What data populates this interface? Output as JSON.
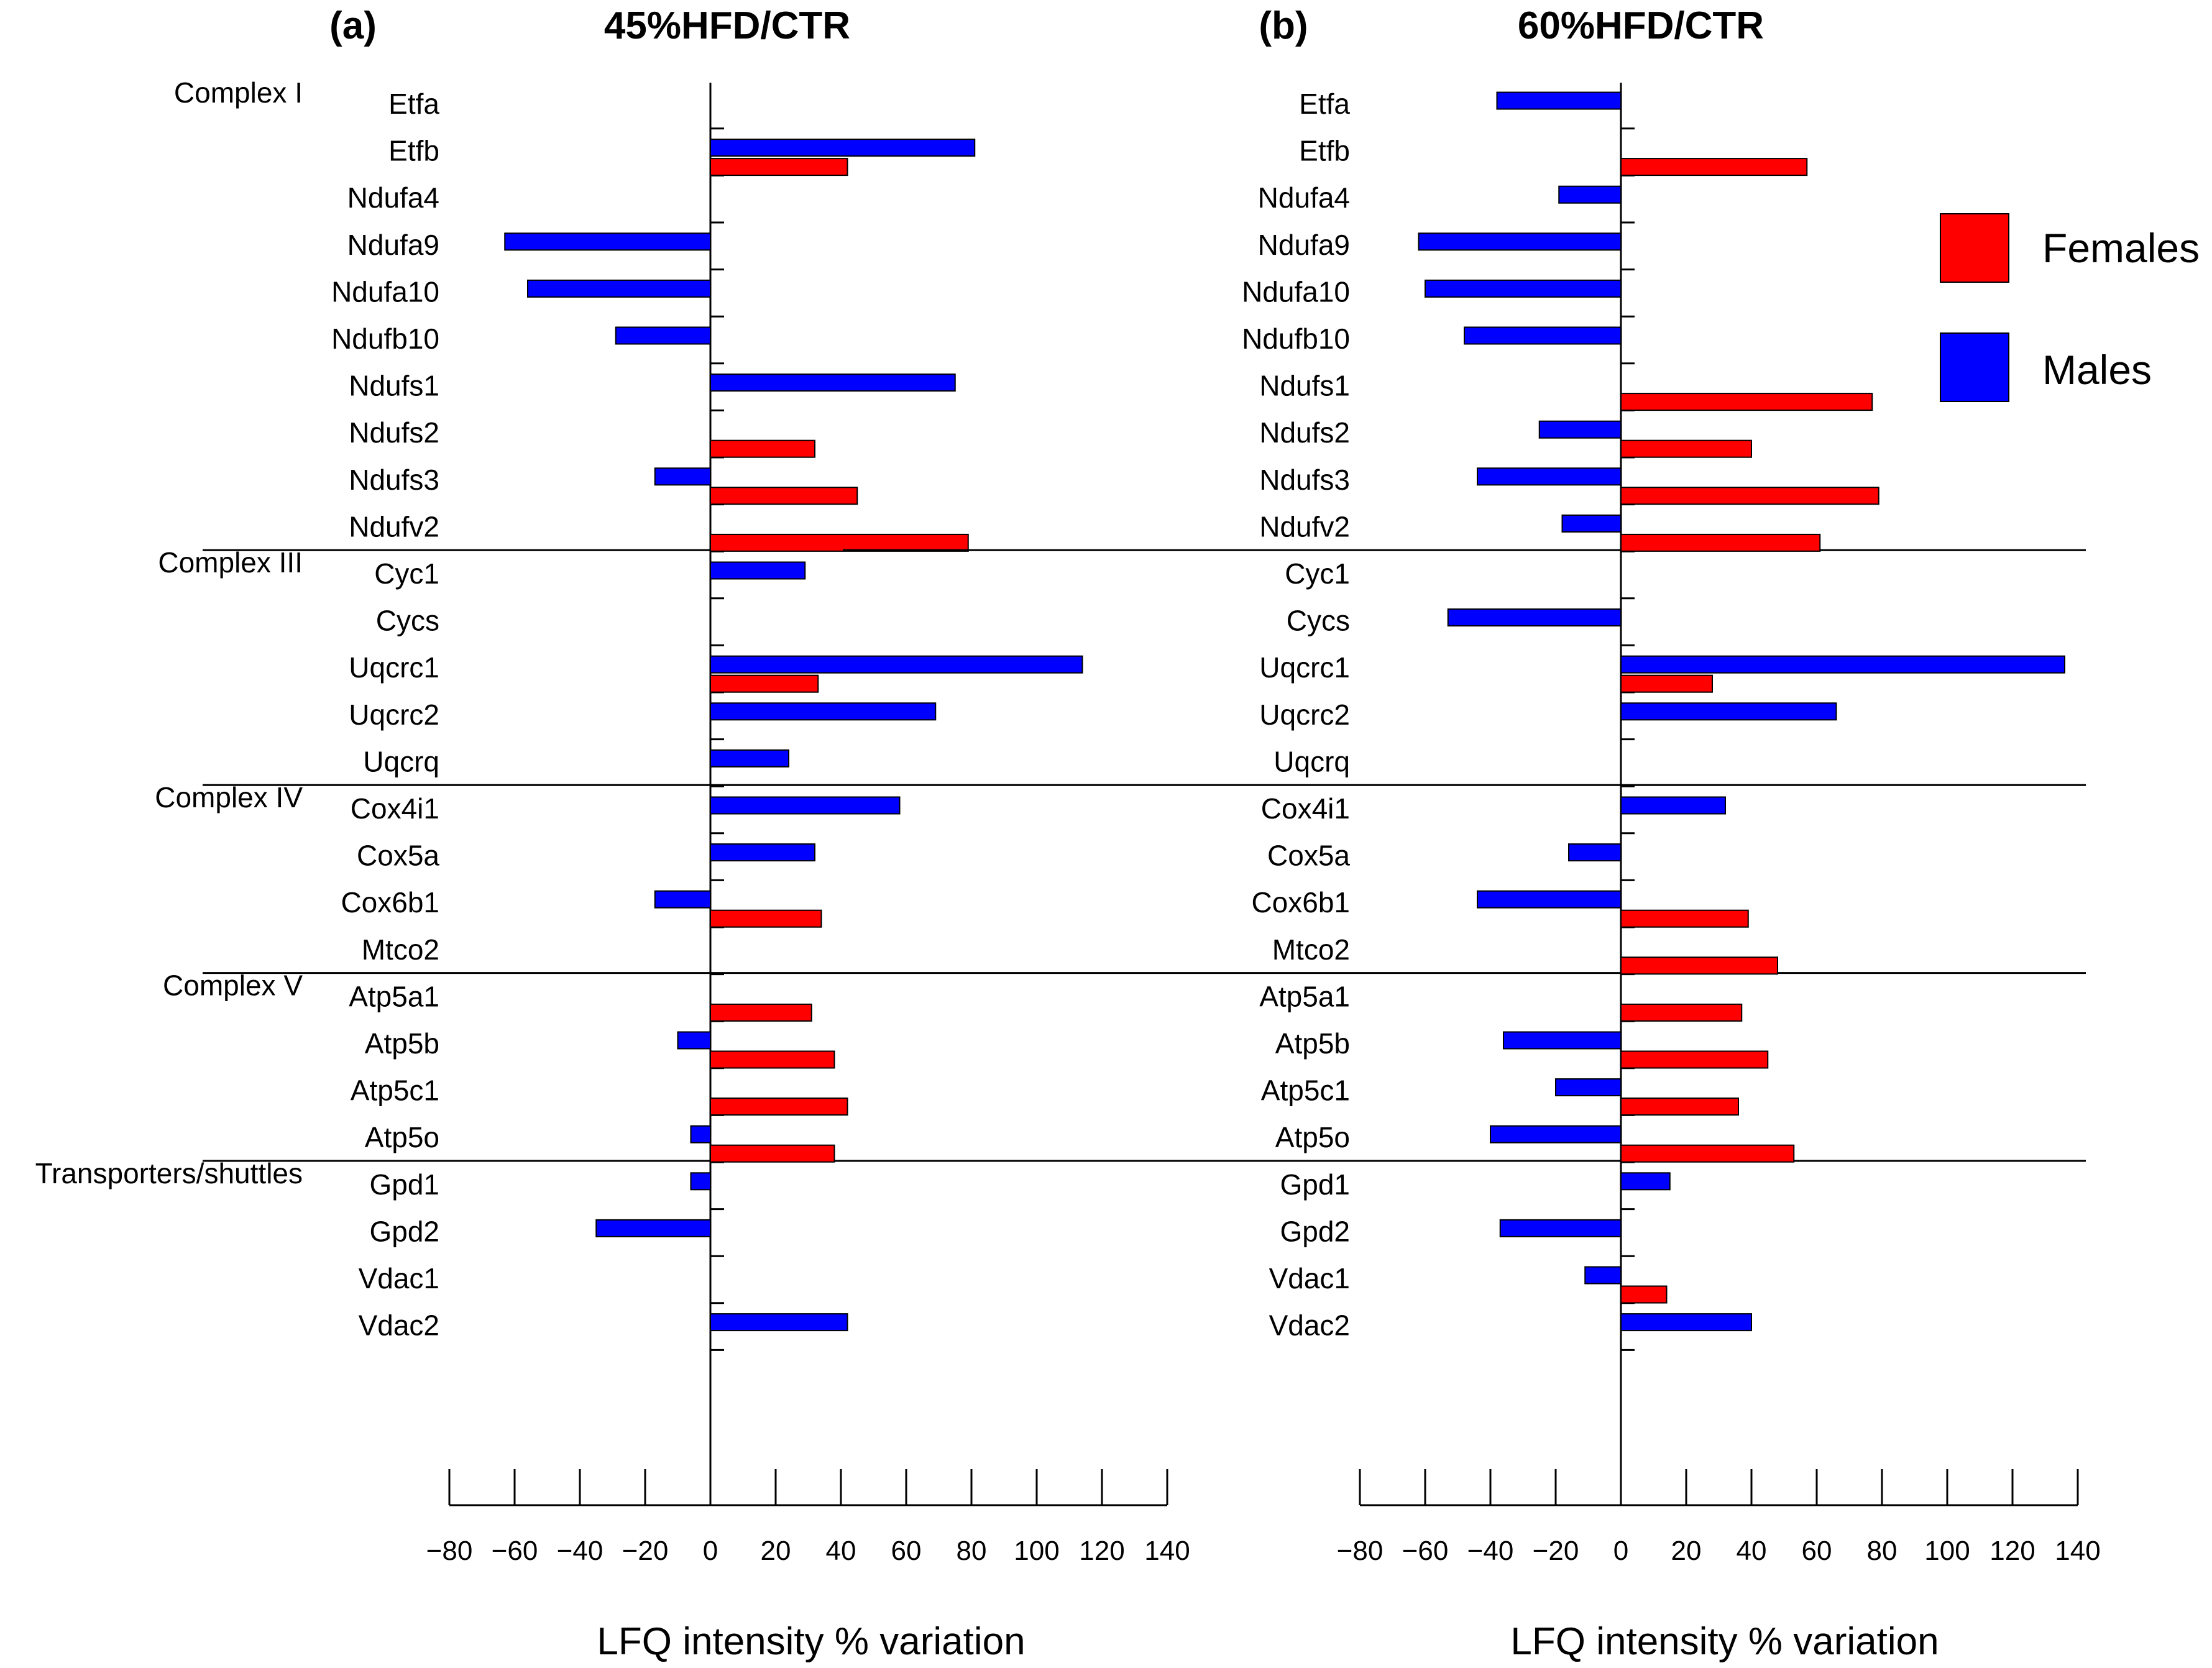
{
  "colors": {
    "females": "#ff0000",
    "males": "#0000ff",
    "axis": "#000000"
  },
  "legend": {
    "females": "Females",
    "males": "Males"
  },
  "chart_data": [
    {
      "type": "bar",
      "orientation": "horizontal",
      "panel_label": "(a)",
      "title": "45%HFD/CTR",
      "xlabel": "LFQ intensity % variation",
      "xlim": [
        -80,
        140
      ],
      "xticks": [
        -80,
        -60,
        -40,
        -20,
        0,
        20,
        40,
        60,
        80,
        100,
        120,
        140
      ],
      "xtick_labels": [
        "−80",
        "−60",
        "−40",
        "−20",
        "0",
        "20",
        "40",
        "60",
        "80",
        "100",
        "120",
        "140"
      ],
      "groups": [
        {
          "name": "Complex I",
          "genes": [
            "Etfa",
            "Etfb",
            "Ndufa4",
            "Ndufa9",
            "Ndufa10",
            "Ndufb10",
            "Ndufs1",
            "Ndufs2",
            "Ndufs3",
            "Ndufv2"
          ]
        },
        {
          "name": "Complex III",
          "genes": [
            "Cyc1",
            "Cycs",
            "Uqcrc1",
            "Uqcrc2",
            "Uqcrq"
          ]
        },
        {
          "name": "Complex IV",
          "genes": [
            "Cox4i1",
            "Cox5a",
            "Cox6b1",
            "Mtco2"
          ]
        },
        {
          "name": "Complex V",
          "genes": [
            "Atp5a1",
            "Atp5b",
            "Atp5c1",
            "Atp5o"
          ]
        },
        {
          "name": "Transporters/shuttles",
          "genes": [
            "Gpd1",
            "Gpd2",
            "Vdac1",
            "Vdac2"
          ]
        }
      ],
      "series": [
        {
          "name": "Males",
          "values": [
            null,
            81,
            null,
            -63,
            -56,
            -29,
            75,
            null,
            -17,
            null,
            29,
            null,
            114,
            69,
            24,
            58,
            32,
            -17,
            null,
            null,
            -10,
            null,
            -6,
            -6,
            -35,
            null,
            42
          ]
        },
        {
          "name": "Females",
          "values": [
            null,
            42,
            null,
            null,
            null,
            null,
            null,
            32,
            45,
            79,
            null,
            null,
            33,
            null,
            null,
            null,
            null,
            34,
            null,
            31,
            38,
            42,
            38,
            null,
            null,
            null,
            null
          ]
        }
      ]
    },
    {
      "type": "bar",
      "orientation": "horizontal",
      "panel_label": "(b)",
      "title": "60%HFD/CTR",
      "xlabel": "LFQ intensity % variation",
      "xlim": [
        -80,
        140
      ],
      "xticks": [
        -80,
        -60,
        -40,
        -20,
        0,
        20,
        40,
        60,
        80,
        100,
        120,
        140
      ],
      "xtick_labels": [
        "−80",
        "−60",
        "−40",
        "−20",
        "0",
        "20",
        "40",
        "60",
        "80",
        "100",
        "120",
        "140"
      ],
      "groups": [
        {
          "name": "Complex I",
          "genes": [
            "Etfa",
            "Etfb",
            "Ndufa4",
            "Ndufa9",
            "Ndufa10",
            "Ndufb10",
            "Ndufs1",
            "Ndufs2",
            "Ndufs3",
            "Ndufv2"
          ]
        },
        {
          "name": "Complex III",
          "genes": [
            "Cyc1",
            "Cycs",
            "Uqcrc1",
            "Uqcrc2",
            "Uqcrq"
          ]
        },
        {
          "name": "Complex IV",
          "genes": [
            "Cox4i1",
            "Cox5a",
            "Cox6b1",
            "Mtco2"
          ]
        },
        {
          "name": "Complex V",
          "genes": [
            "Atp5a1",
            "Atp5b",
            "Atp5c1",
            "Atp5o"
          ]
        },
        {
          "name": "Transporters/shuttles",
          "genes": [
            "Gpd1",
            "Gpd2",
            "Vdac1",
            "Vdac2"
          ]
        }
      ],
      "series": [
        {
          "name": "Males",
          "values": [
            -38,
            null,
            -19,
            -62,
            -60,
            -48,
            null,
            -25,
            -44,
            -18,
            null,
            -53,
            136,
            66,
            null,
            32,
            -16,
            -44,
            null,
            null,
            -36,
            -20,
            -40,
            15,
            -37,
            -11,
            40
          ]
        },
        {
          "name": "Females",
          "values": [
            null,
            57,
            null,
            null,
            null,
            null,
            77,
            40,
            79,
            61,
            null,
            null,
            28,
            null,
            null,
            null,
            null,
            39,
            48,
            37,
            45,
            36,
            53,
            null,
            null,
            14,
            null
          ]
        }
      ]
    }
  ]
}
